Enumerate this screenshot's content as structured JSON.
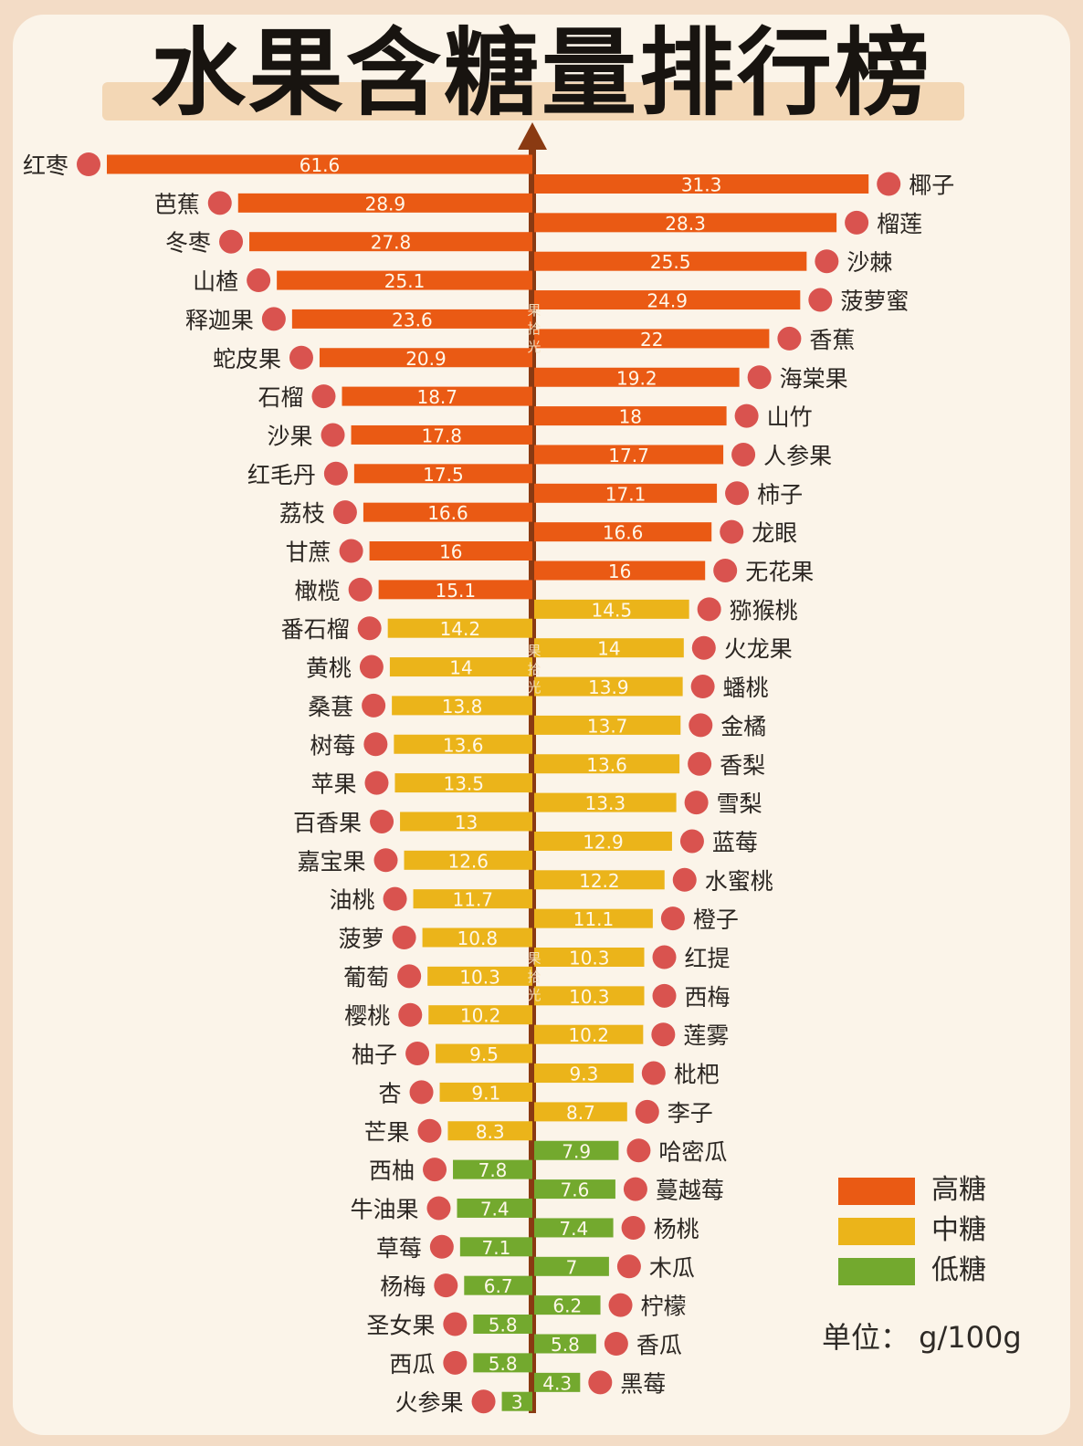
{
  "chart_data": {
    "type": "bar",
    "title": "水果含糖量排行榜",
    "unit": "单位： g/100g",
    "legend": [
      {
        "label": "高糖",
        "color": "#ea5a14"
      },
      {
        "label": "中糖",
        "color": "#ebb41a"
      },
      {
        "label": "低糖",
        "color": "#73a92e"
      }
    ],
    "watermark": "果拾光",
    "left": [
      {
        "name": "红枣",
        "value": 61.6,
        "level": "高糖"
      },
      {
        "name": "芭蕉",
        "value": 28.9,
        "level": "高糖"
      },
      {
        "name": "冬枣",
        "value": 27.8,
        "level": "高糖"
      },
      {
        "name": "山楂",
        "value": 25.1,
        "level": "高糖"
      },
      {
        "name": "释迦果",
        "value": 23.6,
        "level": "高糖"
      },
      {
        "name": "蛇皮果",
        "value": 20.9,
        "level": "高糖"
      },
      {
        "name": "石榴",
        "value": 18.7,
        "level": "高糖"
      },
      {
        "name": "沙果",
        "value": 17.8,
        "level": "高糖"
      },
      {
        "name": "红毛丹",
        "value": 17.5,
        "level": "高糖"
      },
      {
        "name": "荔枝",
        "value": 16.6,
        "level": "高糖"
      },
      {
        "name": "甘蔗",
        "value": 16,
        "level": "高糖"
      },
      {
        "name": "橄榄",
        "value": 15.1,
        "level": "高糖"
      },
      {
        "name": "番石榴",
        "value": 14.2,
        "level": "中糖"
      },
      {
        "name": "黄桃",
        "value": 14,
        "level": "中糖"
      },
      {
        "name": "桑葚",
        "value": 13.8,
        "level": "中糖"
      },
      {
        "name": "树莓",
        "value": 13.6,
        "level": "中糖"
      },
      {
        "name": "苹果",
        "value": 13.5,
        "level": "中糖"
      },
      {
        "name": "百香果",
        "value": 13,
        "level": "中糖"
      },
      {
        "name": "嘉宝果",
        "value": 12.6,
        "level": "中糖"
      },
      {
        "name": "油桃",
        "value": 11.7,
        "level": "中糖"
      },
      {
        "name": "菠萝",
        "value": 10.8,
        "level": "中糖"
      },
      {
        "name": "葡萄",
        "value": 10.3,
        "level": "中糖"
      },
      {
        "name": "樱桃",
        "value": 10.2,
        "level": "中糖"
      },
      {
        "name": "柚子",
        "value": 9.5,
        "level": "中糖"
      },
      {
        "name": "杏",
        "value": 9.1,
        "level": "中糖"
      },
      {
        "name": "芒果",
        "value": 8.3,
        "level": "中糖"
      },
      {
        "name": "西柚",
        "value": 7.8,
        "level": "低糖"
      },
      {
        "name": "牛油果",
        "value": 7.4,
        "level": "低糖"
      },
      {
        "name": "草莓",
        "value": 7.1,
        "level": "低糖"
      },
      {
        "name": "杨梅",
        "value": 6.7,
        "level": "低糖"
      },
      {
        "name": "圣女果",
        "value": 5.8,
        "level": "低糖"
      },
      {
        "name": "西瓜",
        "value": 5.8,
        "level": "低糖"
      },
      {
        "name": "火参果",
        "value": 3,
        "level": "低糖"
      }
    ],
    "right": [
      {
        "name": "椰子",
        "value": 31.3,
        "level": "高糖"
      },
      {
        "name": "榴莲",
        "value": 28.3,
        "level": "高糖"
      },
      {
        "name": "沙棘",
        "value": 25.5,
        "level": "高糖"
      },
      {
        "name": "菠萝蜜",
        "value": 24.9,
        "level": "高糖"
      },
      {
        "name": "香蕉",
        "value": 22,
        "level": "高糖"
      },
      {
        "name": "海棠果",
        "value": 19.2,
        "level": "高糖"
      },
      {
        "name": "山竹",
        "value": 18,
        "level": "高糖"
      },
      {
        "name": "人参果",
        "value": 17.7,
        "level": "高糖"
      },
      {
        "name": "柿子",
        "value": 17.1,
        "level": "高糖"
      },
      {
        "name": "龙眼",
        "value": 16.6,
        "level": "高糖"
      },
      {
        "name": "无花果",
        "value": 16,
        "level": "高糖"
      },
      {
        "name": "猕猴桃",
        "value": 14.5,
        "level": "中糖"
      },
      {
        "name": "火龙果",
        "value": 14,
        "level": "中糖"
      },
      {
        "name": "蟠桃",
        "value": 13.9,
        "level": "中糖"
      },
      {
        "name": "金橘",
        "value": 13.7,
        "level": "中糖"
      },
      {
        "name": "香梨",
        "value": 13.6,
        "level": "中糖"
      },
      {
        "name": "雪梨",
        "value": 13.3,
        "level": "中糖"
      },
      {
        "name": "蓝莓",
        "value": 12.9,
        "level": "中糖"
      },
      {
        "name": "水蜜桃",
        "value": 12.2,
        "level": "中糖"
      },
      {
        "name": "橙子",
        "value": 11.1,
        "level": "中糖"
      },
      {
        "name": "红提",
        "value": 10.3,
        "level": "中糖"
      },
      {
        "name": "西梅",
        "value": 10.3,
        "level": "中糖"
      },
      {
        "name": "莲雾",
        "value": 10.2,
        "level": "中糖"
      },
      {
        "name": "枇杷",
        "value": 9.3,
        "level": "中糖"
      },
      {
        "name": "李子",
        "value": 8.7,
        "level": "中糖"
      },
      {
        "name": "哈密瓜",
        "value": 7.9,
        "level": "低糖"
      },
      {
        "name": "蔓越莓",
        "value": 7.6,
        "level": "低糖"
      },
      {
        "name": "杨桃",
        "value": 7.4,
        "level": "低糖"
      },
      {
        "name": "木瓜",
        "value": 7,
        "level": "低糖"
      },
      {
        "name": "柠檬",
        "value": 6.2,
        "level": "低糖"
      },
      {
        "name": "香瓜",
        "value": 5.8,
        "level": "低糖"
      },
      {
        "name": "黑莓",
        "value": 4.3,
        "level": "低糖"
      }
    ]
  }
}
